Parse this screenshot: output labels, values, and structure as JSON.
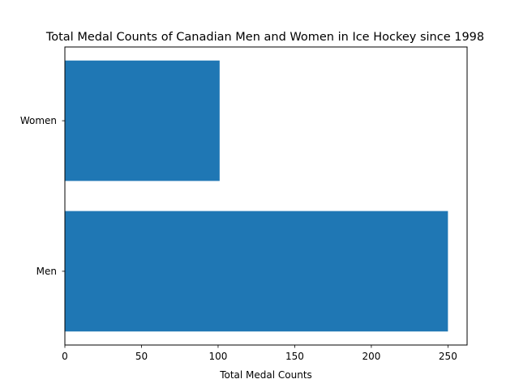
{
  "chart_data": {
    "type": "bar",
    "orientation": "horizontal",
    "title": "Total Medal Counts of Canadian Men and Women in Ice Hockey since 1998",
    "xlabel": "Total Medal Counts",
    "ylabel": "",
    "categories": [
      "Men",
      "Women"
    ],
    "values": [
      250,
      101
    ],
    "xlim": [
      0,
      262.5
    ],
    "xticks": [
      0,
      50,
      100,
      150,
      200,
      250
    ],
    "grid": false,
    "legend": "none",
    "bar_color": "#1f77b4"
  }
}
